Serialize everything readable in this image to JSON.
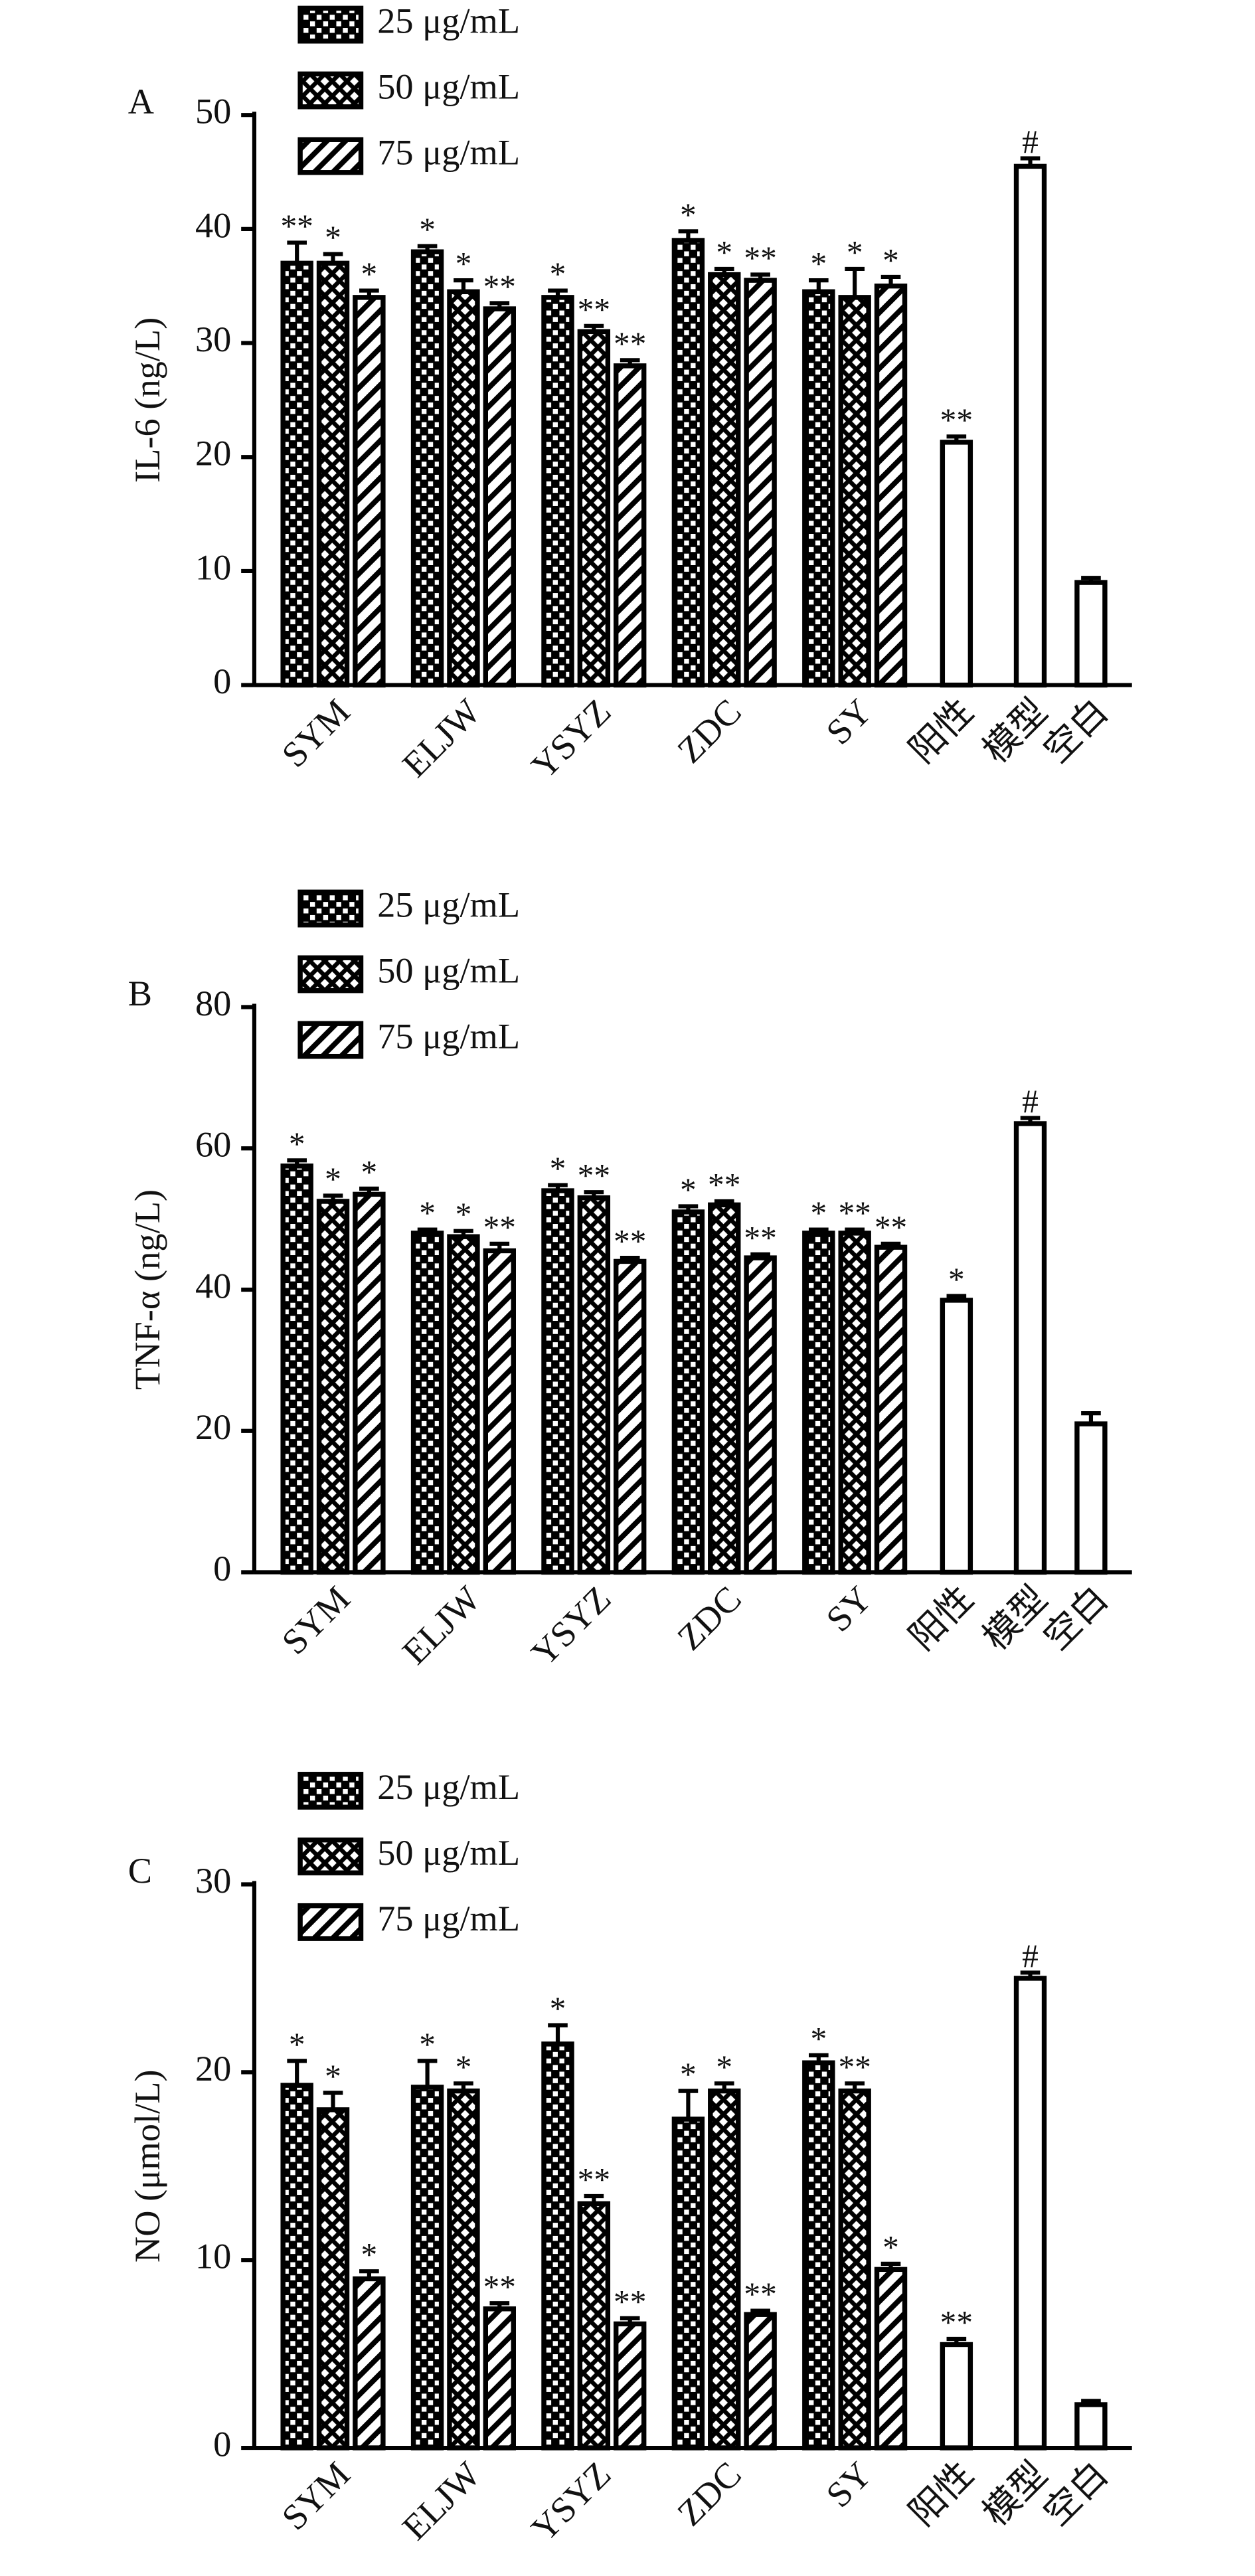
{
  "chart_data": [
    {
      "type": "bar",
      "panel": "A",
      "ylabel": "IL-6 (ng/L)",
      "categories": [
        "SYM",
        "ELJW",
        "YSYZ",
        "ZDC",
        "SY",
        "阳性",
        "模型",
        "空白"
      ],
      "ylim": [
        0,
        50
      ],
      "yticks": [
        0,
        10,
        20,
        30,
        40,
        50
      ],
      "series": [
        {
          "name": "25 μg/mL",
          "color": "#000000",
          "pattern": "checker",
          "values": [
            37,
            38,
            34,
            39,
            34.5,
            null,
            null,
            null
          ],
          "errors": [
            1.8,
            0.5,
            0.6,
            0.8,
            1,
            null,
            null,
            null
          ],
          "annotations": [
            "**",
            "*",
            "*",
            "*",
            "*",
            null,
            null,
            null
          ]
        },
        {
          "name": "50 μg/mL",
          "color": "#000000",
          "pattern": "cross",
          "values": [
            37,
            34.5,
            31,
            36,
            34,
            null,
            null,
            null
          ],
          "errors": [
            0.8,
            1,
            0.5,
            0.5,
            2.5,
            null,
            null,
            null
          ],
          "annotations": [
            "*",
            "*",
            "**",
            "*",
            "*",
            null,
            null,
            null
          ]
        },
        {
          "name": "75 μg/mL",
          "color": "#000000",
          "pattern": "stripe",
          "values": [
            34,
            33,
            28,
            35.5,
            35,
            null,
            null,
            null
          ],
          "errors": [
            0.6,
            0.5,
            0.5,
            0.5,
            0.8,
            null,
            null,
            null
          ],
          "annotations": [
            "*",
            "**",
            "**",
            "**",
            "*",
            null,
            null,
            null
          ]
        },
        {
          "color": "#ffffff",
          "pattern": "plain",
          "values": [
            null,
            null,
            null,
            null,
            null,
            21.3,
            45.5,
            9
          ],
          "errors": [
            null,
            null,
            null,
            null,
            null,
            0.5,
            0.7,
            0.4
          ],
          "annotations": [
            null,
            null,
            null,
            null,
            null,
            "**",
            "#",
            null
          ]
        }
      ]
    },
    {
      "type": "bar",
      "panel": "B",
      "ylabel": "TNF-α (ng/L)",
      "categories": [
        "SYM",
        "ELJW",
        "YSYZ",
        "ZDC",
        "SY",
        "阳性",
        "模型",
        "空白"
      ],
      "ylim": [
        0,
        80
      ],
      "yticks": [
        0,
        20,
        40,
        60,
        80
      ],
      "series": [
        {
          "name": "25 μg/mL",
          "color": "#000000",
          "pattern": "checker",
          "values": [
            57.5,
            48,
            54,
            51,
            48,
            null,
            null,
            null
          ],
          "errors": [
            0.8,
            0.5,
            0.8,
            0.8,
            0.5,
            null,
            null,
            null
          ],
          "annotations": [
            "*",
            "*",
            "*",
            "*",
            "*",
            null,
            null,
            null
          ]
        },
        {
          "name": "50 μg/mL",
          "color": "#000000",
          "pattern": "cross",
          "values": [
            52.5,
            47.5,
            53,
            52,
            48,
            null,
            null,
            null
          ],
          "errors": [
            0.8,
            0.8,
            0.8,
            0.5,
            0.5,
            null,
            null,
            null
          ],
          "annotations": [
            "*",
            "*",
            "**",
            "**",
            "**",
            null,
            null,
            null
          ]
        },
        {
          "name": "75 μg/mL",
          "color": "#000000",
          "pattern": "stripe",
          "values": [
            53.5,
            45.5,
            44,
            44.5,
            46,
            null,
            null,
            null
          ],
          "errors": [
            0.8,
            1,
            0.5,
            0.5,
            0.5,
            null,
            null,
            null
          ],
          "annotations": [
            "*",
            "**",
            "**",
            "**",
            "**",
            null,
            null,
            null
          ]
        },
        {
          "color": "#ffffff",
          "pattern": "plain",
          "values": [
            null,
            null,
            null,
            null,
            null,
            38.5,
            63.5,
            21
          ],
          "errors": [
            null,
            null,
            null,
            null,
            null,
            0.6,
            0.8,
            1.5
          ],
          "annotations": [
            null,
            null,
            null,
            null,
            null,
            "*",
            "#",
            null
          ]
        }
      ]
    },
    {
      "type": "bar",
      "panel": "C",
      "ylabel": "NO (μmol/L)",
      "categories": [
        "SYM",
        "ELJW",
        "YSYZ",
        "ZDC",
        "SY",
        "阳性",
        "模型",
        "空白"
      ],
      "ylim": [
        0,
        30
      ],
      "yticks": [
        0,
        10,
        20,
        30
      ],
      "series": [
        {
          "name": "25 μg/mL",
          "color": "#000000",
          "pattern": "checker",
          "values": [
            19.3,
            19.2,
            21.5,
            17.5,
            20.5,
            null,
            null,
            null
          ],
          "errors": [
            1.3,
            1.4,
            1,
            1.5,
            0.4,
            null,
            null,
            null
          ],
          "annotations": [
            "*",
            "*",
            "*",
            "*",
            "*",
            null,
            null,
            null
          ]
        },
        {
          "name": "50 μg/mL",
          "color": "#000000",
          "pattern": "cross",
          "values": [
            18,
            19,
            13,
            19,
            19,
            null,
            null,
            null
          ],
          "errors": [
            0.9,
            0.4,
            0.4,
            0.4,
            0.4,
            null,
            null,
            null
          ],
          "annotations": [
            "*",
            "*",
            "**",
            "*",
            "**",
            null,
            null,
            null
          ]
        },
        {
          "name": "75 μg/mL",
          "color": "#000000",
          "pattern": "stripe",
          "values": [
            9,
            7.4,
            6.6,
            7.1,
            9.5,
            null,
            null,
            null
          ],
          "errors": [
            0.4,
            0.3,
            0.3,
            0.2,
            0.3,
            null,
            null,
            null
          ],
          "annotations": [
            "*",
            "**",
            "**",
            "**",
            "*",
            null,
            null,
            null
          ]
        },
        {
          "color": "#ffffff",
          "pattern": "plain",
          "values": [
            null,
            null,
            null,
            null,
            null,
            5.5,
            25,
            2.3
          ],
          "errors": [
            null,
            null,
            null,
            null,
            null,
            0.3,
            0.3,
            0.2
          ],
          "annotations": [
            null,
            null,
            null,
            null,
            null,
            "**",
            "#",
            null
          ]
        }
      ]
    }
  ]
}
